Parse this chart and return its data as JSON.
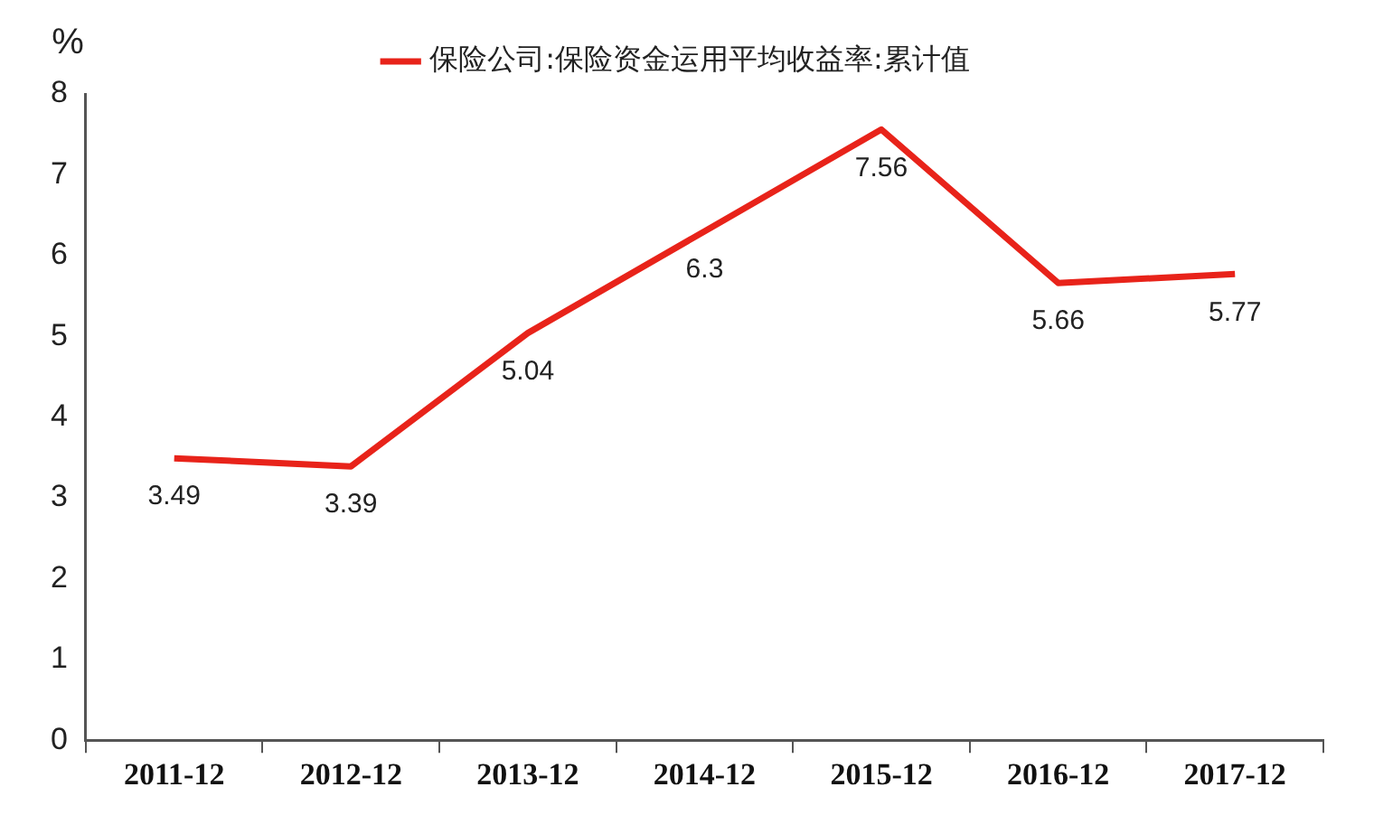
{
  "chart_data": {
    "type": "line",
    "ylabel": "%",
    "categories": [
      "2011-12",
      "2012-12",
      "2013-12",
      "2014-12",
      "2015-12",
      "2016-12",
      "2017-12"
    ],
    "series": [
      {
        "name": "保险公司:保险资金运用平均收益率:累计值",
        "color": "#e8231a",
        "values": [
          3.49,
          3.39,
          5.04,
          6.3,
          7.56,
          5.66,
          5.77
        ]
      }
    ],
    "ylim": [
      0,
      8
    ],
    "yticks": [
      0,
      1,
      2,
      3,
      4,
      5,
      6,
      7,
      8
    ],
    "grid": false,
    "legend": "top",
    "data_labels": true,
    "marker": "none",
    "line_style": "solid"
  }
}
